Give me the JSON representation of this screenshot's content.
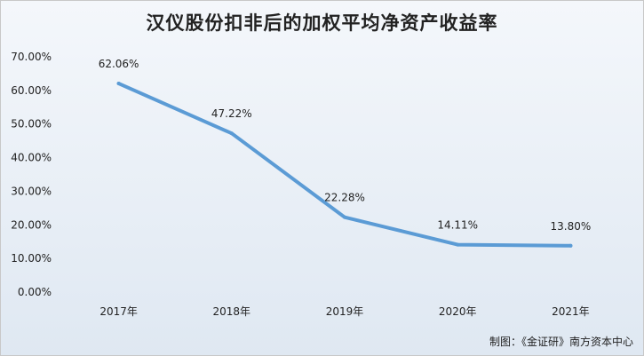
{
  "chart_data": {
    "type": "line",
    "title": "汉仪股份扣非后的加权平均净资产收益率",
    "categories": [
      "2017年",
      "2018年",
      "2019年",
      "2020年",
      "2021年"
    ],
    "series": [
      {
        "values": [
          62.06,
          47.22,
          22.28,
          14.11,
          13.8
        ]
      }
    ],
    "data_labels": [
      "62.06%",
      "47.22%",
      "22.28%",
      "14.11%",
      "13.80%"
    ],
    "yticks": [
      "0.00%",
      "10.00%",
      "20.00%",
      "30.00%",
      "40.00%",
      "50.00%",
      "60.00%",
      "70.00%"
    ],
    "ylim": [
      0,
      70
    ],
    "grid": false,
    "line_color": "#5b9bd5"
  },
  "footer": "制图：《金证研》南方资本中心"
}
